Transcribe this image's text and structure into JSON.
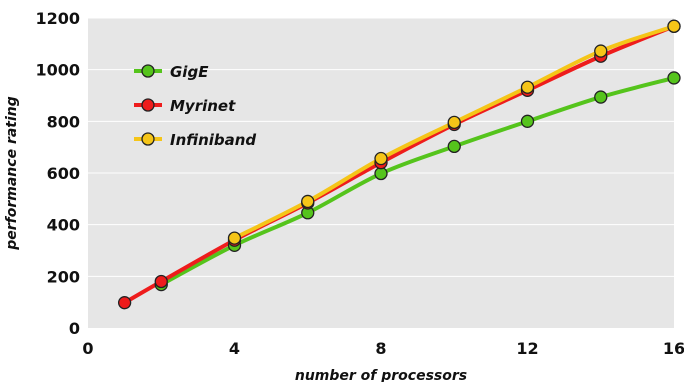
{
  "chart_data": {
    "type": "line",
    "xlabel": "number of processors",
    "ylabel": "performance rating",
    "xlim": [
      0,
      16
    ],
    "ylim": [
      0,
      1200
    ],
    "xticks": [
      0,
      4,
      8,
      12,
      16
    ],
    "yticks": [
      0,
      200,
      400,
      600,
      800,
      1000,
      1200
    ],
    "grid": "horizontal",
    "plot_background": "#e6e6e6",
    "legend_position": "top-left",
    "series": [
      {
        "name": "GigE",
        "color": "#55c41c",
        "x": [
          2,
          4,
          6,
          8,
          10,
          12,
          14,
          16
        ],
        "y": [
          168,
          320,
          446,
          598,
          703,
          800,
          894,
          968
        ]
      },
      {
        "name": "Myrinet",
        "color": "#ee1c1c",
        "x": [
          1,
          2,
          4,
          6,
          8,
          10,
          12,
          14,
          16
        ],
        "y": [
          98,
          180,
          340,
          484,
          640,
          788,
          920,
          1052,
          1168
        ]
      },
      {
        "name": "Infiniband",
        "color": "#f5c518",
        "x": [
          4,
          6,
          8,
          10,
          12,
          14,
          16
        ],
        "y": [
          348,
          490,
          656,
          796,
          932,
          1072,
          1168
        ]
      }
    ]
  }
}
